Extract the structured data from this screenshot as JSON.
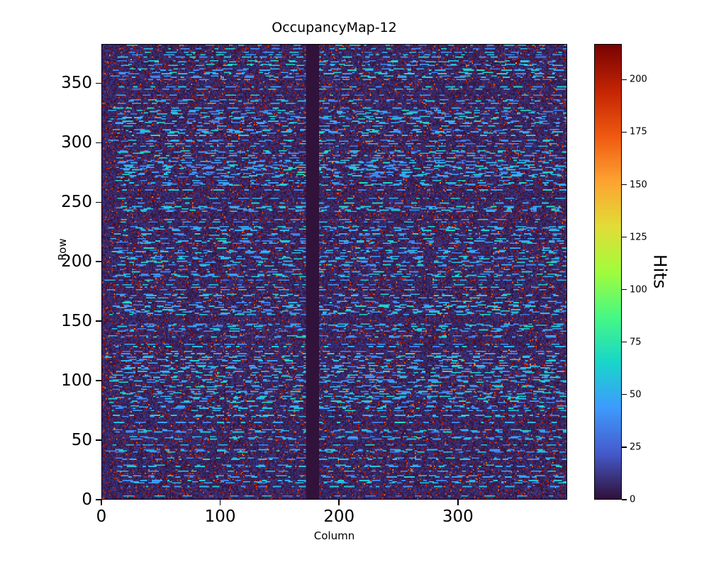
{
  "chart_data": {
    "type": "heatmap",
    "title": "OccupancyMap-12",
    "xlabel": "Column",
    "ylabel": "Row",
    "x_range": [
      0,
      392
    ],
    "y_range": [
      0,
      383
    ],
    "x_ticks": [
      0,
      100,
      200,
      300
    ],
    "y_ticks": [
      0,
      50,
      100,
      150,
      200,
      250,
      300,
      350
    ],
    "colorbar": {
      "label": "Hits",
      "ticks": [
        0,
        25,
        50,
        75,
        100,
        125,
        150,
        175,
        200
      ],
      "vmin": 0,
      "vmax": 217,
      "position": "right"
    },
    "colormap": "turbo",
    "colormap_stops": [
      "#30123b",
      "#455bcd",
      "#3e9bfe",
      "#18d6cb",
      "#46f884",
      "#a2fc3c",
      "#e1dd37",
      "#fea331",
      "#ef5911",
      "#c42503",
      "#7a0403"
    ],
    "background_color": "#30123b",
    "grid": false,
    "pattern": {
      "description": "Mostly near-zero dark background with horizontal dashed streaks of moderate hit counts, dense scatter of high-count hot pixels, and one dead (zero-hit) vertical column band",
      "dead_columns": [
        172,
        182
      ],
      "background_value_range": [
        0,
        12
      ],
      "streak_value_range": [
        30,
        70
      ],
      "hot_pixel_value_range": [
        150,
        217
      ],
      "streak_row_fraction": 0.5,
      "hot_pixel_fraction": 0.1,
      "seed": 12
    }
  }
}
